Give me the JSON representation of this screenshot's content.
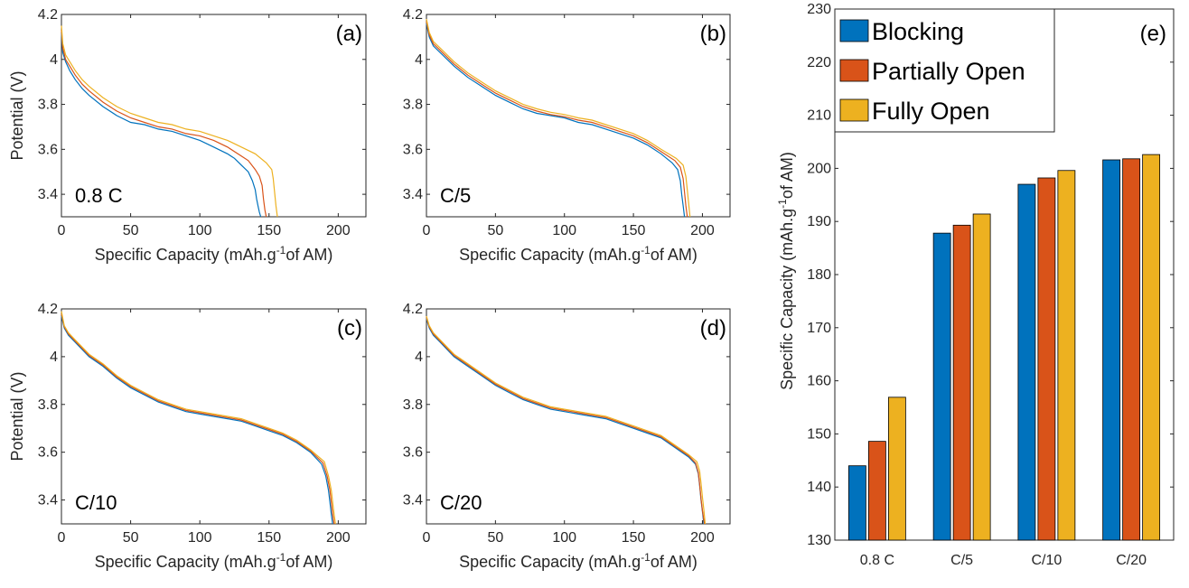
{
  "chart_data": [
    {
      "type": "line",
      "panel_label": "(a)",
      "condition_label": "0.8 C",
      "xlabel_main": "Specific Capacity (mAh.g",
      "xlabel_sup": "-1",
      "xlabel_tail": "of AM)",
      "ylabel": "Potential (V)",
      "xlim": [
        0,
        220
      ],
      "ylim": [
        3.3,
        4.2
      ],
      "xticks": [
        "0",
        "50",
        "100",
        "150",
        "200"
      ],
      "yticks": [
        "3.4",
        "3.6",
        "3.8",
        "4",
        "4.2"
      ],
      "series": [
        {
          "color": "#0072BD",
          "x": [
            0,
            1,
            3,
            6,
            10,
            15,
            20,
            30,
            40,
            50,
            60,
            70,
            80,
            90,
            100,
            110,
            120,
            125,
            130,
            135,
            138,
            140,
            141,
            142,
            143,
            144
          ],
          "y": [
            4.12,
            4.03,
            3.99,
            3.95,
            3.91,
            3.87,
            3.84,
            3.79,
            3.75,
            3.72,
            3.71,
            3.69,
            3.68,
            3.66,
            3.64,
            3.61,
            3.58,
            3.56,
            3.53,
            3.5,
            3.46,
            3.42,
            3.38,
            3.35,
            3.32,
            3.3
          ]
        },
        {
          "color": "#D95319",
          "x": [
            0,
            1,
            3,
            6,
            10,
            15,
            20,
            30,
            40,
            50,
            60,
            70,
            80,
            90,
            100,
            110,
            120,
            130,
            135,
            140,
            143,
            145,
            146,
            147,
            148
          ],
          "y": [
            4.13,
            4.05,
            4.0,
            3.97,
            3.93,
            3.89,
            3.86,
            3.81,
            3.77,
            3.74,
            3.72,
            3.7,
            3.69,
            3.67,
            3.66,
            3.64,
            3.61,
            3.57,
            3.55,
            3.51,
            3.48,
            3.44,
            3.38,
            3.33,
            3.3
          ]
        },
        {
          "color": "#EDB120",
          "x": [
            0,
            1,
            3,
            6,
            10,
            15,
            20,
            30,
            40,
            50,
            60,
            70,
            80,
            90,
            100,
            110,
            120,
            130,
            140,
            148,
            152,
            153,
            154,
            155,
            156
          ],
          "y": [
            4.15,
            4.07,
            4.02,
            3.99,
            3.95,
            3.91,
            3.88,
            3.83,
            3.79,
            3.76,
            3.74,
            3.72,
            3.71,
            3.69,
            3.68,
            3.66,
            3.64,
            3.61,
            3.58,
            3.54,
            3.51,
            3.47,
            3.41,
            3.35,
            3.3
          ]
        }
      ]
    },
    {
      "type": "line",
      "panel_label": "(b)",
      "condition_label": "C/5",
      "xlabel_main": "Specific Capacity (mAh.g",
      "xlabel_sup": "-1",
      "xlabel_tail": "of AM)",
      "ylabel": "",
      "xlim": [
        0,
        220
      ],
      "ylim": [
        3.3,
        4.2
      ],
      "xticks": [
        "0",
        "50",
        "100",
        "150",
        "200"
      ],
      "yticks": [
        "3.4",
        "3.6",
        "3.8",
        "4",
        "4.2"
      ],
      "series": [
        {
          "color": "#0072BD",
          "x": [
            0,
            2,
            5,
            10,
            20,
            30,
            40,
            50,
            60,
            70,
            80,
            90,
            100,
            110,
            120,
            130,
            140,
            150,
            160,
            170,
            178,
            182,
            184,
            185,
            186,
            187
          ],
          "y": [
            4.16,
            4.1,
            4.06,
            4.03,
            3.97,
            3.92,
            3.88,
            3.84,
            3.81,
            3.78,
            3.76,
            3.75,
            3.74,
            3.72,
            3.71,
            3.69,
            3.67,
            3.65,
            3.62,
            3.58,
            3.54,
            3.51,
            3.46,
            3.4,
            3.35,
            3.3
          ]
        },
        {
          "color": "#D95319",
          "x": [
            0,
            2,
            5,
            10,
            20,
            30,
            40,
            50,
            60,
            70,
            80,
            90,
            100,
            110,
            120,
            130,
            140,
            150,
            160,
            170,
            180,
            184,
            186,
            187,
            188,
            189
          ],
          "y": [
            4.17,
            4.11,
            4.07,
            4.04,
            3.98,
            3.93,
            3.89,
            3.85,
            3.82,
            3.79,
            3.77,
            3.755,
            3.745,
            3.73,
            3.72,
            3.7,
            3.68,
            3.66,
            3.63,
            3.59,
            3.55,
            3.52,
            3.47,
            3.41,
            3.35,
            3.3
          ]
        },
        {
          "color": "#EDB120",
          "x": [
            0,
            2,
            5,
            10,
            20,
            30,
            40,
            50,
            60,
            70,
            80,
            90,
            100,
            110,
            120,
            130,
            140,
            150,
            160,
            170,
            181,
            186,
            188,
            189,
            190,
            191
          ],
          "y": [
            4.18,
            4.12,
            4.08,
            4.05,
            3.99,
            3.94,
            3.9,
            3.86,
            3.83,
            3.8,
            3.78,
            3.765,
            3.755,
            3.74,
            3.73,
            3.71,
            3.69,
            3.67,
            3.64,
            3.6,
            3.56,
            3.53,
            3.48,
            3.42,
            3.36,
            3.3
          ]
        }
      ]
    },
    {
      "type": "line",
      "panel_label": "(c)",
      "condition_label": "C/10",
      "xlabel_main": "Specific Capacity (mAh.g",
      "xlabel_sup": "-1",
      "xlabel_tail": "of AM)",
      "ylabel": "Potential (V)",
      "xlim": [
        0,
        220
      ],
      "ylim": [
        3.3,
        4.2
      ],
      "xticks": [
        "0",
        "50",
        "100",
        "150",
        "200"
      ],
      "yticks": [
        "3.4",
        "3.6",
        "3.8",
        "4",
        "4.2"
      ],
      "series": [
        {
          "color": "#0072BD",
          "x": [
            0,
            2,
            5,
            10,
            20,
            30,
            40,
            50,
            60,
            70,
            80,
            90,
            100,
            110,
            120,
            130,
            140,
            150,
            160,
            170,
            180,
            188,
            191,
            193,
            194,
            195,
            196
          ],
          "y": [
            4.17,
            4.12,
            4.09,
            4.06,
            4.0,
            3.96,
            3.91,
            3.87,
            3.84,
            3.81,
            3.79,
            3.77,
            3.76,
            3.75,
            3.74,
            3.73,
            3.71,
            3.69,
            3.67,
            3.64,
            3.6,
            3.55,
            3.5,
            3.44,
            3.39,
            3.34,
            3.3
          ]
        },
        {
          "color": "#D95319",
          "x": [
            0,
            2,
            5,
            10,
            20,
            30,
            40,
            50,
            60,
            70,
            80,
            90,
            100,
            110,
            120,
            130,
            140,
            150,
            160,
            170,
            180,
            189,
            192,
            194,
            195,
            196,
            197
          ],
          "y": [
            4.18,
            4.125,
            4.095,
            4.065,
            4.005,
            3.965,
            3.915,
            3.875,
            3.845,
            3.815,
            3.795,
            3.775,
            3.765,
            3.755,
            3.745,
            3.735,
            3.715,
            3.695,
            3.675,
            3.645,
            3.605,
            3.555,
            3.5,
            3.44,
            3.39,
            3.34,
            3.3
          ]
        },
        {
          "color": "#EDB120",
          "x": [
            0,
            2,
            5,
            10,
            20,
            30,
            40,
            50,
            60,
            70,
            80,
            90,
            100,
            110,
            120,
            130,
            140,
            150,
            160,
            170,
            180,
            190,
            193,
            195,
            196,
            197,
            198
          ],
          "y": [
            4.19,
            4.13,
            4.1,
            4.07,
            4.01,
            3.97,
            3.92,
            3.88,
            3.85,
            3.82,
            3.8,
            3.78,
            3.77,
            3.76,
            3.75,
            3.74,
            3.72,
            3.7,
            3.68,
            3.65,
            3.61,
            3.56,
            3.5,
            3.44,
            3.39,
            3.34,
            3.3
          ]
        }
      ]
    },
    {
      "type": "line",
      "panel_label": "(d)",
      "condition_label": "C/20",
      "xlabel_main": "Specific Capacity (mAh.g",
      "xlabel_sup": "-1",
      "xlabel_tail": "of AM)",
      "ylabel": "",
      "xlim": [
        0,
        220
      ],
      "ylim": [
        3.3,
        4.2
      ],
      "xticks": [
        "0",
        "50",
        "100",
        "150",
        "200"
      ],
      "yticks": [
        "3.4",
        "3.6",
        "3.8",
        "4",
        "4.2"
      ],
      "series": [
        {
          "color": "#0072BD",
          "x": [
            0,
            2,
            5,
            10,
            20,
            30,
            40,
            50,
            60,
            70,
            80,
            90,
            100,
            110,
            120,
            130,
            140,
            150,
            160,
            170,
            180,
            190,
            195,
            197,
            198,
            199,
            200,
            201
          ],
          "y": [
            4.16,
            4.12,
            4.09,
            4.06,
            4.0,
            3.96,
            3.92,
            3.88,
            3.85,
            3.82,
            3.8,
            3.78,
            3.77,
            3.76,
            3.75,
            3.74,
            3.72,
            3.7,
            3.68,
            3.66,
            3.62,
            3.58,
            3.55,
            3.51,
            3.46,
            3.4,
            3.35,
            3.3
          ]
        },
        {
          "color": "#D95319",
          "x": [
            0,
            2,
            5,
            10,
            20,
            30,
            40,
            50,
            60,
            70,
            80,
            90,
            100,
            110,
            120,
            130,
            140,
            150,
            160,
            170,
            180,
            190,
            195,
            197,
            198,
            199,
            200,
            201.5
          ],
          "y": [
            4.165,
            4.125,
            4.095,
            4.065,
            4.005,
            3.965,
            3.925,
            3.885,
            3.855,
            3.825,
            3.805,
            3.785,
            3.775,
            3.765,
            3.755,
            3.745,
            3.725,
            3.705,
            3.685,
            3.665,
            3.625,
            3.585,
            3.555,
            3.515,
            3.465,
            3.405,
            3.355,
            3.3
          ]
        },
        {
          "color": "#EDB120",
          "x": [
            0,
            2,
            5,
            10,
            20,
            30,
            40,
            50,
            60,
            70,
            80,
            90,
            100,
            110,
            120,
            130,
            140,
            150,
            160,
            170,
            180,
            190,
            196,
            198,
            199,
            200,
            201,
            202
          ],
          "y": [
            4.17,
            4.13,
            4.1,
            4.07,
            4.01,
            3.97,
            3.93,
            3.89,
            3.86,
            3.83,
            3.81,
            3.79,
            3.78,
            3.77,
            3.76,
            3.75,
            3.73,
            3.71,
            3.69,
            3.67,
            3.63,
            3.59,
            3.56,
            3.52,
            3.47,
            3.41,
            3.36,
            3.3
          ]
        }
      ]
    },
    {
      "type": "bar",
      "panel_label": "(e)",
      "categories": [
        "0.8 C",
        "C/5",
        "C/10",
        "C/20"
      ],
      "ylabel_main": "Specific Capacity (mAh.g",
      "ylabel_sup": "-1",
      "ylabel_tail": "of AM)",
      "ylim": [
        130,
        230
      ],
      "yticks": [
        "130",
        "140",
        "150",
        "160",
        "170",
        "180",
        "190",
        "200",
        "210",
        "220",
        "230"
      ],
      "legend_position": "top-left",
      "series": [
        {
          "name": "Blocking",
          "color": "#0072BD",
          "values": [
            144.0,
            187.8,
            197.0,
            201.6
          ]
        },
        {
          "name": "Partially Open",
          "color": "#D95319",
          "values": [
            148.6,
            189.3,
            198.2,
            201.8
          ]
        },
        {
          "name": "Fully Open",
          "color": "#EDB120",
          "values": [
            156.9,
            191.4,
            199.6,
            202.6
          ]
        }
      ]
    }
  ]
}
